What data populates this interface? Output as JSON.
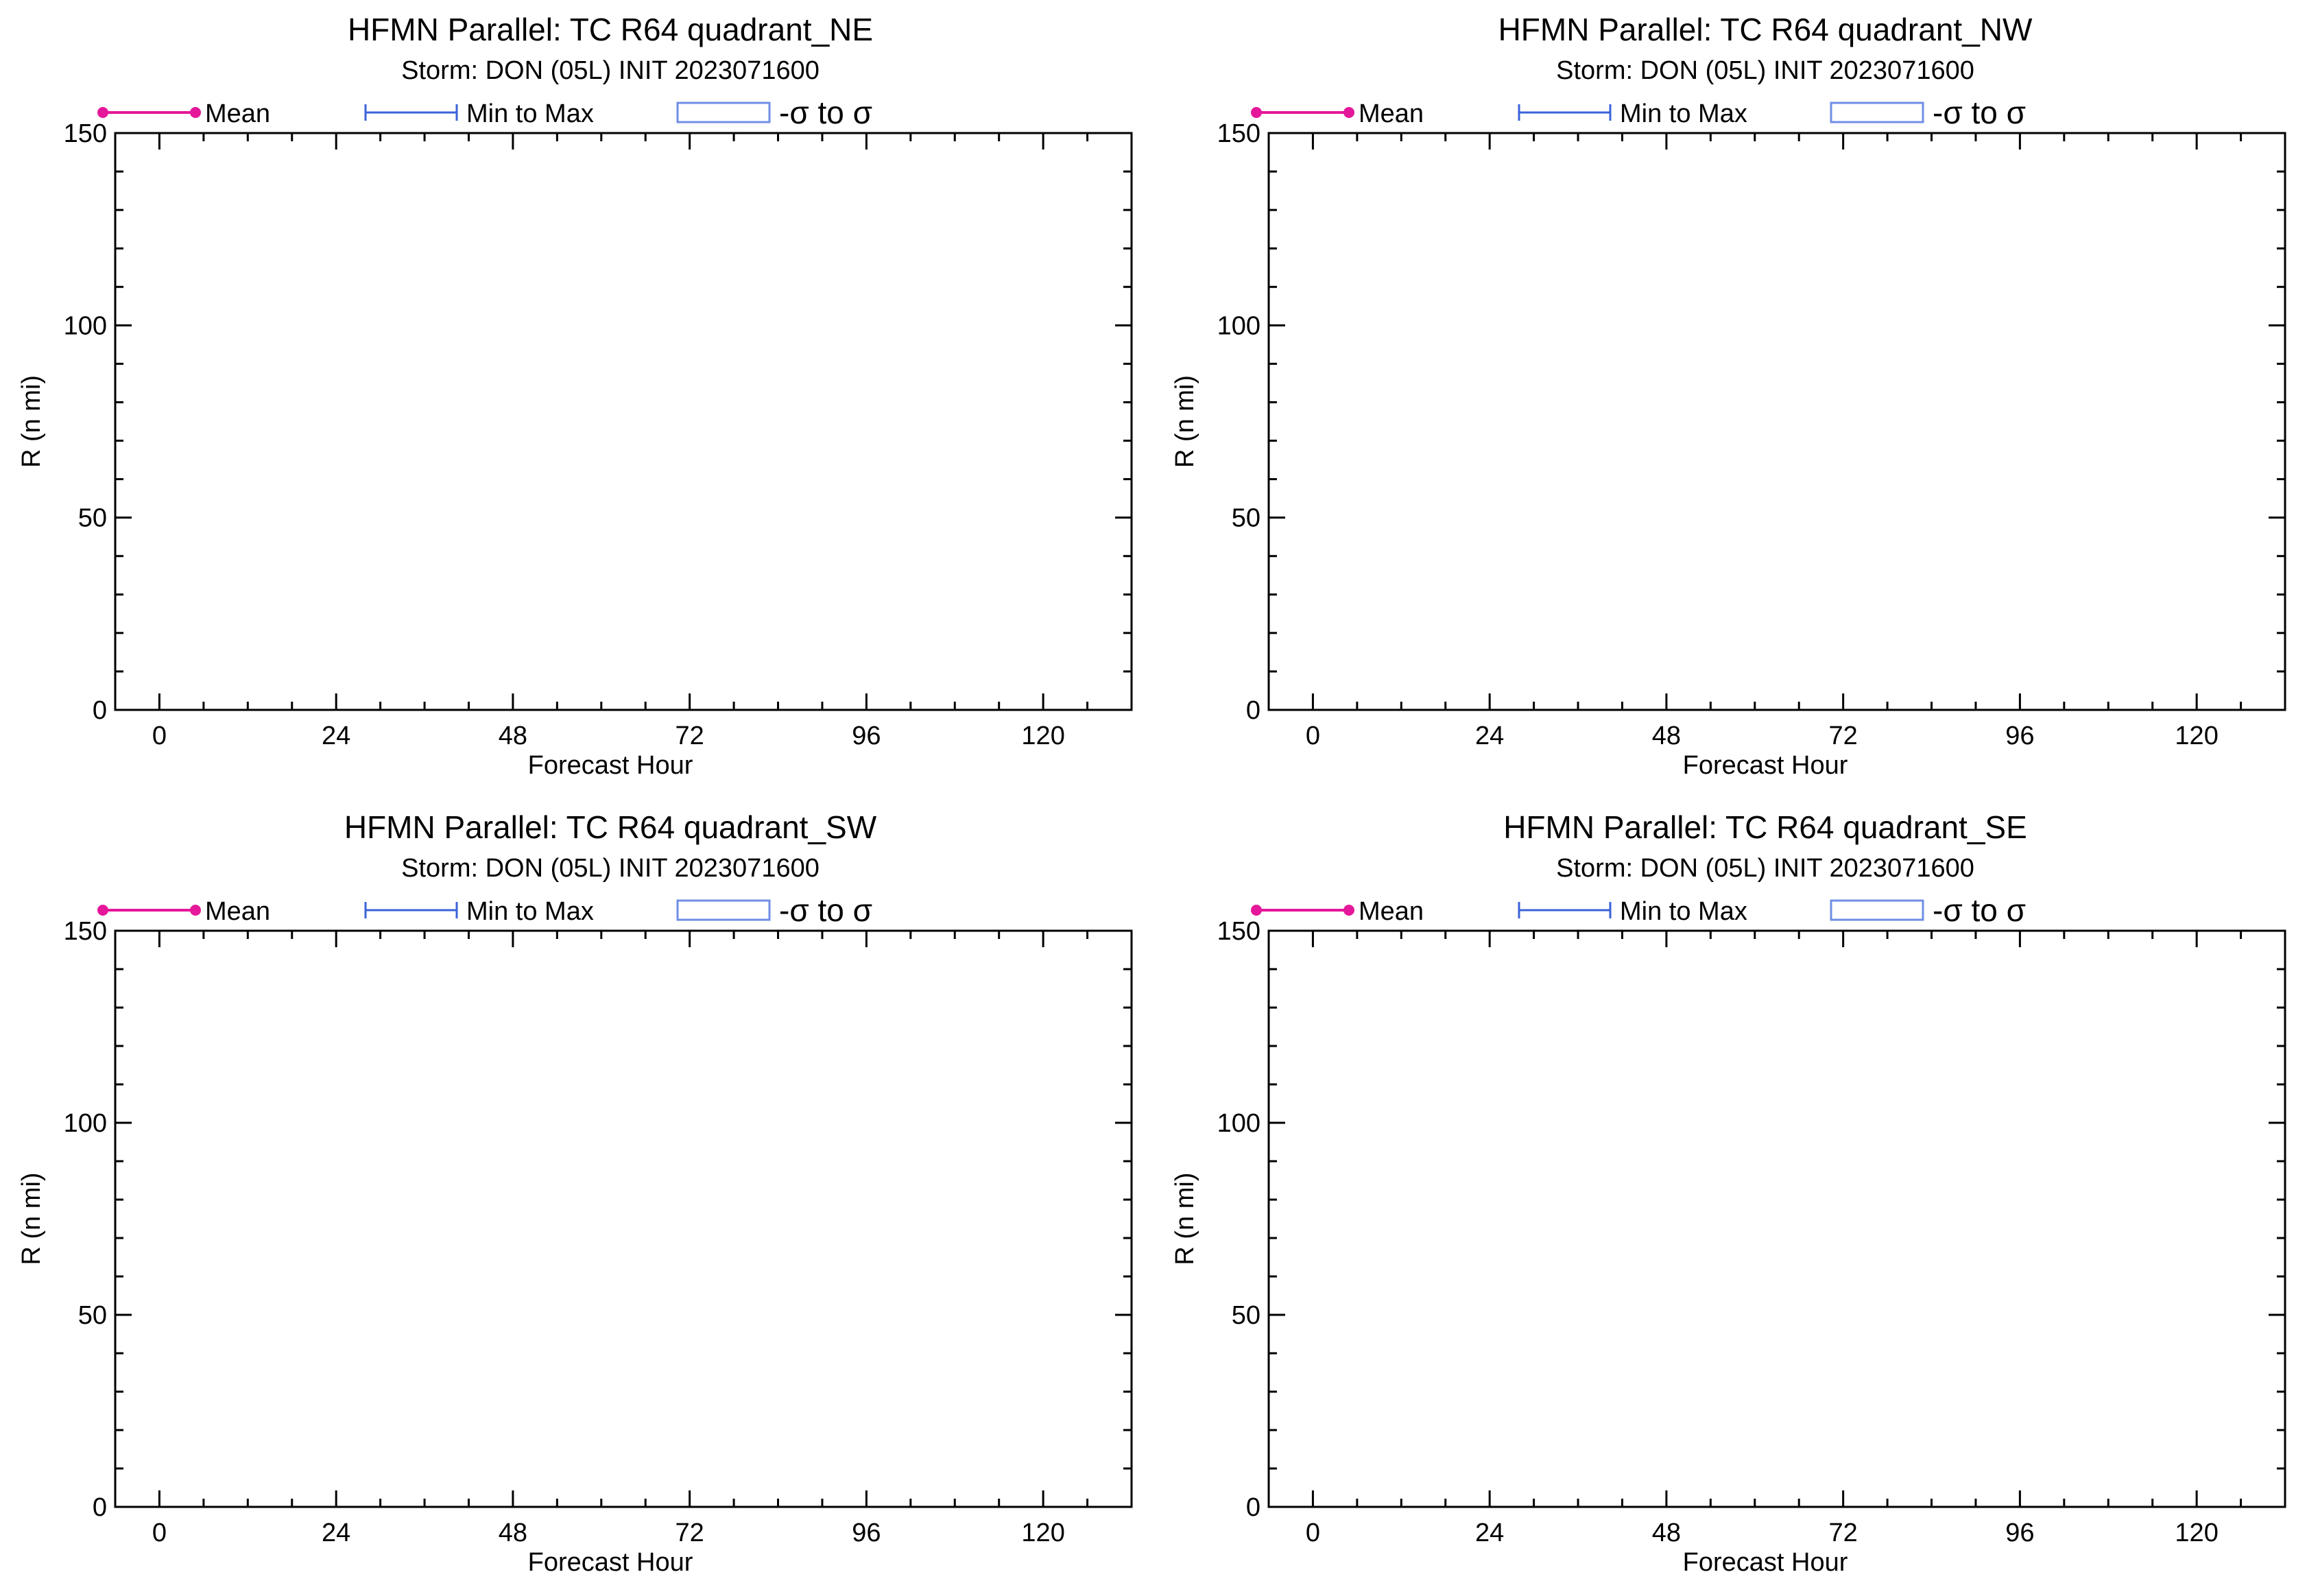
{
  "figure": {
    "legend": {
      "mean_label": "Mean",
      "minmax_label": "Min to Max",
      "sigma_label": "-σ to σ",
      "mean_color": "#e5179a",
      "minmax_color": "#3b62d9",
      "sigma_color": "#6f8fe6"
    }
  },
  "chart_data": [
    {
      "type": "line",
      "title": "HFMN Parallel: TC  R64 quadrant_NE",
      "subtitle": "Storm: DON (05L) INIT 2023071600",
      "xlabel": "Forecast Hour",
      "ylabel": "R (n mi)",
      "xlim": [
        -6,
        132
      ],
      "ylim": [
        0,
        150
      ],
      "xticks": [
        0,
        24,
        48,
        72,
        96,
        120
      ],
      "yticks": [
        0,
        50,
        100,
        150
      ],
      "grid": false,
      "legend_position": "top",
      "series": []
    },
    {
      "type": "line",
      "title": "HFMN Parallel: TC  R64 quadrant_NW",
      "subtitle": "Storm: DON (05L) INIT 2023071600",
      "xlabel": "Forecast Hour",
      "ylabel": "R (n mi)",
      "xlim": [
        -6,
        132
      ],
      "ylim": [
        0,
        150
      ],
      "xticks": [
        0,
        24,
        48,
        72,
        96,
        120
      ],
      "yticks": [
        0,
        50,
        100,
        150
      ],
      "grid": false,
      "legend_position": "top",
      "series": []
    },
    {
      "type": "line",
      "title": "HFMN Parallel: TC  R64 quadrant_SW",
      "subtitle": "Storm: DON (05L) INIT 2023071600",
      "xlabel": "Forecast Hour",
      "ylabel": "R (n mi)",
      "xlim": [
        -6,
        132
      ],
      "ylim": [
        0,
        150
      ],
      "xticks": [
        0,
        24,
        48,
        72,
        96,
        120
      ],
      "yticks": [
        0,
        50,
        100,
        150
      ],
      "grid": false,
      "legend_position": "top",
      "series": []
    },
    {
      "type": "line",
      "title": "HFMN Parallel: TC  R64 quadrant_SE",
      "subtitle": "Storm: DON (05L) INIT 2023071600",
      "xlabel": "Forecast Hour",
      "ylabel": "R (n mi)",
      "xlim": [
        -6,
        132
      ],
      "ylim": [
        0,
        150
      ],
      "xticks": [
        0,
        24,
        48,
        72,
        96,
        120
      ],
      "yticks": [
        0,
        50,
        100,
        150
      ],
      "grid": false,
      "legend_position": "top",
      "series": []
    }
  ]
}
